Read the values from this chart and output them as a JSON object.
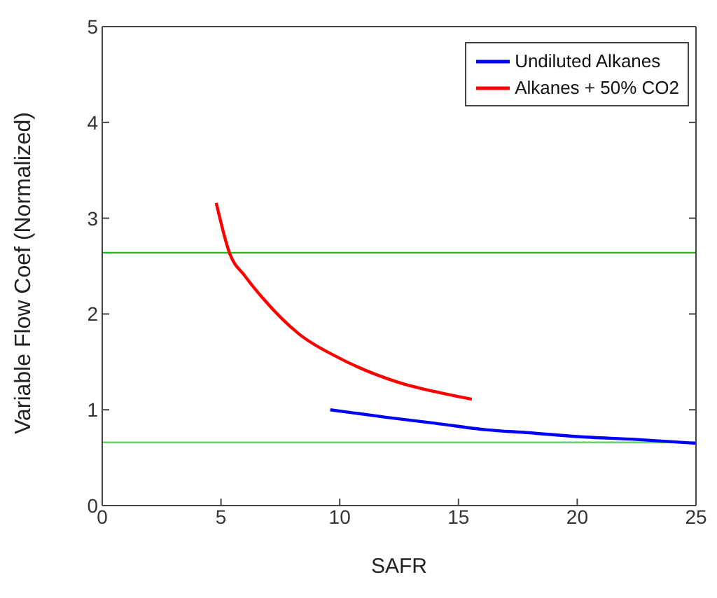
{
  "chart_data": {
    "type": "line",
    "xlabel": "SAFR",
    "ylabel": "Variable Flow Coef (Normalized)",
    "series": [
      {
        "name": "Undiluted Alkanes",
        "color": "#0000ff",
        "x": [
          9.6,
          12,
          14,
          16.2,
          18,
          20,
          22.5,
          25
        ],
        "values": [
          1.0,
          0.92,
          0.86,
          0.79,
          0.76,
          0.72,
          0.69,
          0.65
        ]
      },
      {
        "name": "Alkanes + 50% CO2",
        "color": "#ff0000",
        "x": [
          4.8,
          5.37,
          6,
          6.78,
          8.29,
          9.98,
          12.43,
          14,
          15.56
        ],
        "values": [
          3.16,
          2.63,
          2.4,
          2.16,
          1.79,
          1.54,
          1.29,
          1.19,
          1.11
        ]
      }
    ],
    "ref_lines": [
      {
        "axis": "y",
        "value": 2.64,
        "color": "#22b322"
      },
      {
        "axis": "y",
        "value": 0.66,
        "color": "#66d466"
      }
    ],
    "xlim": [
      0,
      25
    ],
    "xticks": [
      0,
      5,
      10,
      15,
      20,
      25
    ],
    "ylim": [
      0,
      5
    ],
    "yticks": [
      0,
      1,
      2,
      3,
      4,
      5
    ],
    "grid": false,
    "legend": "top right",
    "marker": "none",
    "line_style": "solid"
  }
}
